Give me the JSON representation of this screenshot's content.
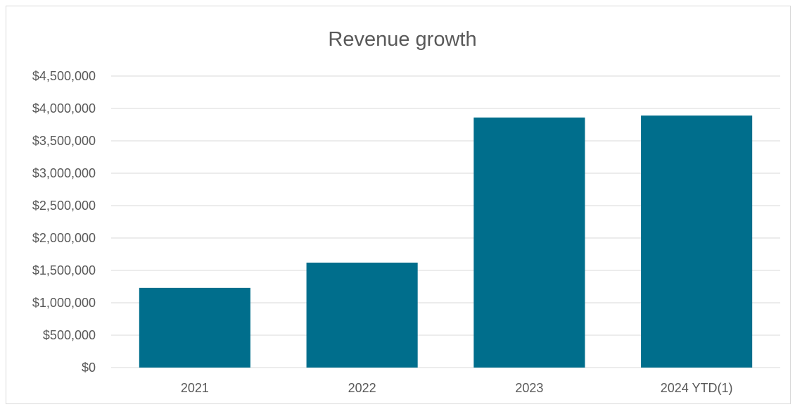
{
  "chart_data": {
    "type": "bar",
    "title": "Revenue growth",
    "xlabel": "",
    "ylabel": "",
    "categories": [
      "2021",
      "2022",
      "2023",
      "2024 YTD(1)"
    ],
    "values": [
      1230000,
      1620000,
      3860000,
      3890000
    ],
    "ylim": [
      0,
      4500000
    ],
    "yticks": [
      0,
      500000,
      1000000,
      1500000,
      2000000,
      2500000,
      3000000,
      3500000,
      4000000,
      4500000
    ],
    "ytick_labels": [
      "$0",
      "$500,000",
      "$1,000,000",
      "$1,500,000",
      "$2,000,000",
      "$2,500,000",
      "$3,000,000",
      "$3,500,000",
      "$4,000,000",
      "$4,500,000"
    ],
    "grid": true,
    "legend": "none",
    "bar_color": "#006E8C"
  }
}
